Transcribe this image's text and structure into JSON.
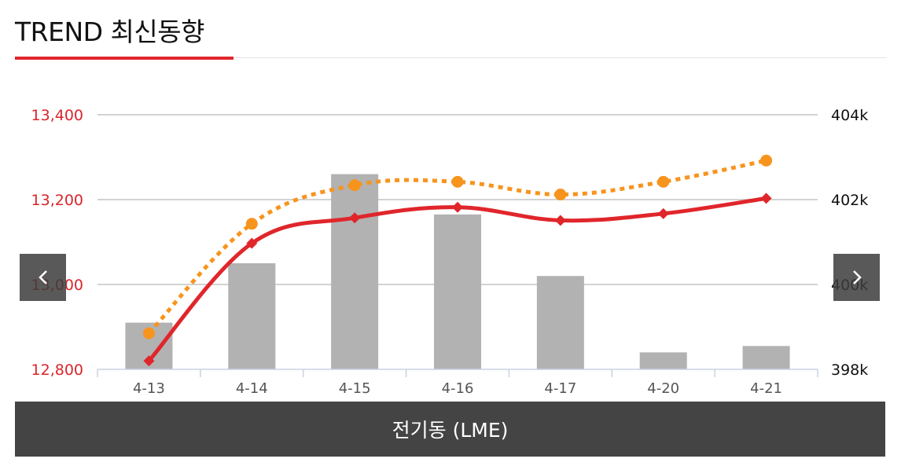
{
  "header": {
    "title": "TREND 최신동향"
  },
  "colors": {
    "accent": "#e0262b",
    "left_axis_text": "#d9262c",
    "bar": "#b2b2b2",
    "orange_line": "#f7941d",
    "red_line": "#e0262b",
    "grid": "#c4c4c4",
    "footer_bg": "#444444"
  },
  "nav": {
    "prev_icon": "chevron-left-icon",
    "next_icon": "chevron-right-icon"
  },
  "footer": {
    "label": "전기동 (LME)"
  },
  "chart_data": {
    "type": "bar",
    "categories": [
      "4-13",
      "4-14",
      "4-15",
      "4-16",
      "4-17",
      "4-20",
      "4-21"
    ],
    "left_axis": {
      "ylim": [
        12800,
        13400
      ],
      "ticks": [
        "12,800",
        "13,000",
        "13,200",
        "13,400"
      ],
      "tick_values": [
        12800,
        13000,
        13200,
        13400
      ]
    },
    "right_axis": {
      "ylim": [
        398000,
        404000
      ],
      "ticks": [
        "398k",
        "400k",
        "402k",
        "404k"
      ],
      "tick_values": [
        398000,
        400000,
        402000,
        404000
      ]
    },
    "series": [
      {
        "kind": "bar",
        "axis": "right",
        "values": [
          399100,
          400500,
          402600,
          401650,
          400200,
          398400,
          398550
        ]
      },
      {
        "kind": "line-dotted",
        "axis": "left",
        "values": [
          12885,
          13143,
          13234,
          13242,
          13212,
          13242,
          13292
        ]
      },
      {
        "kind": "line-solid",
        "axis": "left",
        "values": [
          12820,
          13097,
          13157,
          13182,
          13151,
          13167,
          13203
        ]
      }
    ],
    "grid": true
  }
}
